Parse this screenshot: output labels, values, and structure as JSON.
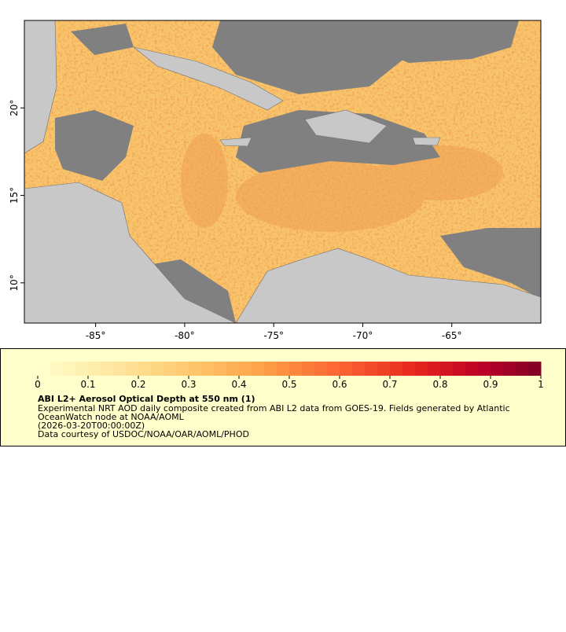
{
  "map": {
    "xlim": [
      -89,
      -60
    ],
    "ylim": [
      7.7,
      25
    ],
    "xticks": [
      {
        "value": -85,
        "label": "-85°"
      },
      {
        "value": -80,
        "label": "-80°"
      },
      {
        "value": -75,
        "label": "-75°"
      },
      {
        "value": -70,
        "label": "-70°"
      },
      {
        "value": -65,
        "label": "-65°"
      }
    ],
    "yticks": [
      {
        "value": 10,
        "label": "10°"
      },
      {
        "value": 15,
        "label": "15°"
      },
      {
        "value": 20,
        "label": "20°"
      }
    ]
  },
  "colorbar": {
    "range": [
      0,
      1
    ],
    "ticks": [
      0,
      0.1,
      0.2,
      0.3,
      0.4,
      0.5,
      0.6,
      0.7,
      0.8,
      0.9,
      1
    ]
  },
  "legend": {
    "title": "ABI L2+ Aerosol Optical Depth at 550 nm (1)",
    "lines": [
      "Experimental NRT AOD daily composite created from ABI L2 data from GOES-19. Fields generated by Atlantic",
      "OceanWatch node at NOAA/AOML",
      "(2026-03-20T00:00:00Z)",
      "Data courtesy of USDOC/NOAA/OAR/AOML/PHOD"
    ]
  }
}
